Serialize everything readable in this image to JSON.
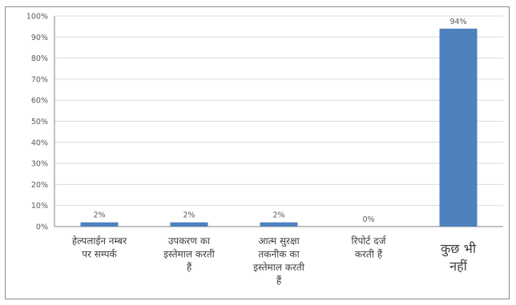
{
  "chart_data": {
    "type": "bar",
    "categories": [
      "हेल्पलाईन नम्बर पर सम्पर्क",
      "उपकरण का इस्तेमाल करती हैं",
      "आत्म सुरक्षा तकनीक का इस्तेमाल करती हैं",
      "रिपोर्ट दर्ज करती हैं",
      "कुछ भी नहीं"
    ],
    "category_lines": [
      [
        "हेल्पलाईन नम्बर",
        "पर सम्पर्क"
      ],
      [
        "उपकरण का",
        "इस्तेमाल करती",
        "हैं"
      ],
      [
        "आत्म सुरक्षा",
        "तकनीक का",
        "इस्तेमाल करती",
        "हैं"
      ],
      [
        "रिपोर्ट दर्ज",
        "करती हैं"
      ],
      [
        "कुछ भी",
        "नहीं"
      ]
    ],
    "values": [
      2,
      2,
      2,
      0,
      94
    ],
    "data_labels": [
      "2%",
      "2%",
      "2%",
      "0%",
      "94%"
    ],
    "ylim": [
      0,
      100
    ],
    "yticks": [
      0,
      10,
      20,
      30,
      40,
      50,
      60,
      70,
      80,
      90,
      100
    ],
    "ytick_labels": [
      "0%",
      "10%",
      "20%",
      "30%",
      "40%",
      "50%",
      "60%",
      "70%",
      "80%",
      "90%",
      "100%"
    ],
    "grid": true,
    "legend": false,
    "title": "",
    "xlabel": "",
    "ylabel": "",
    "colors": {
      "bar": "#4f81bd",
      "grid": "#d9d9d9",
      "axis": "#868686"
    }
  }
}
